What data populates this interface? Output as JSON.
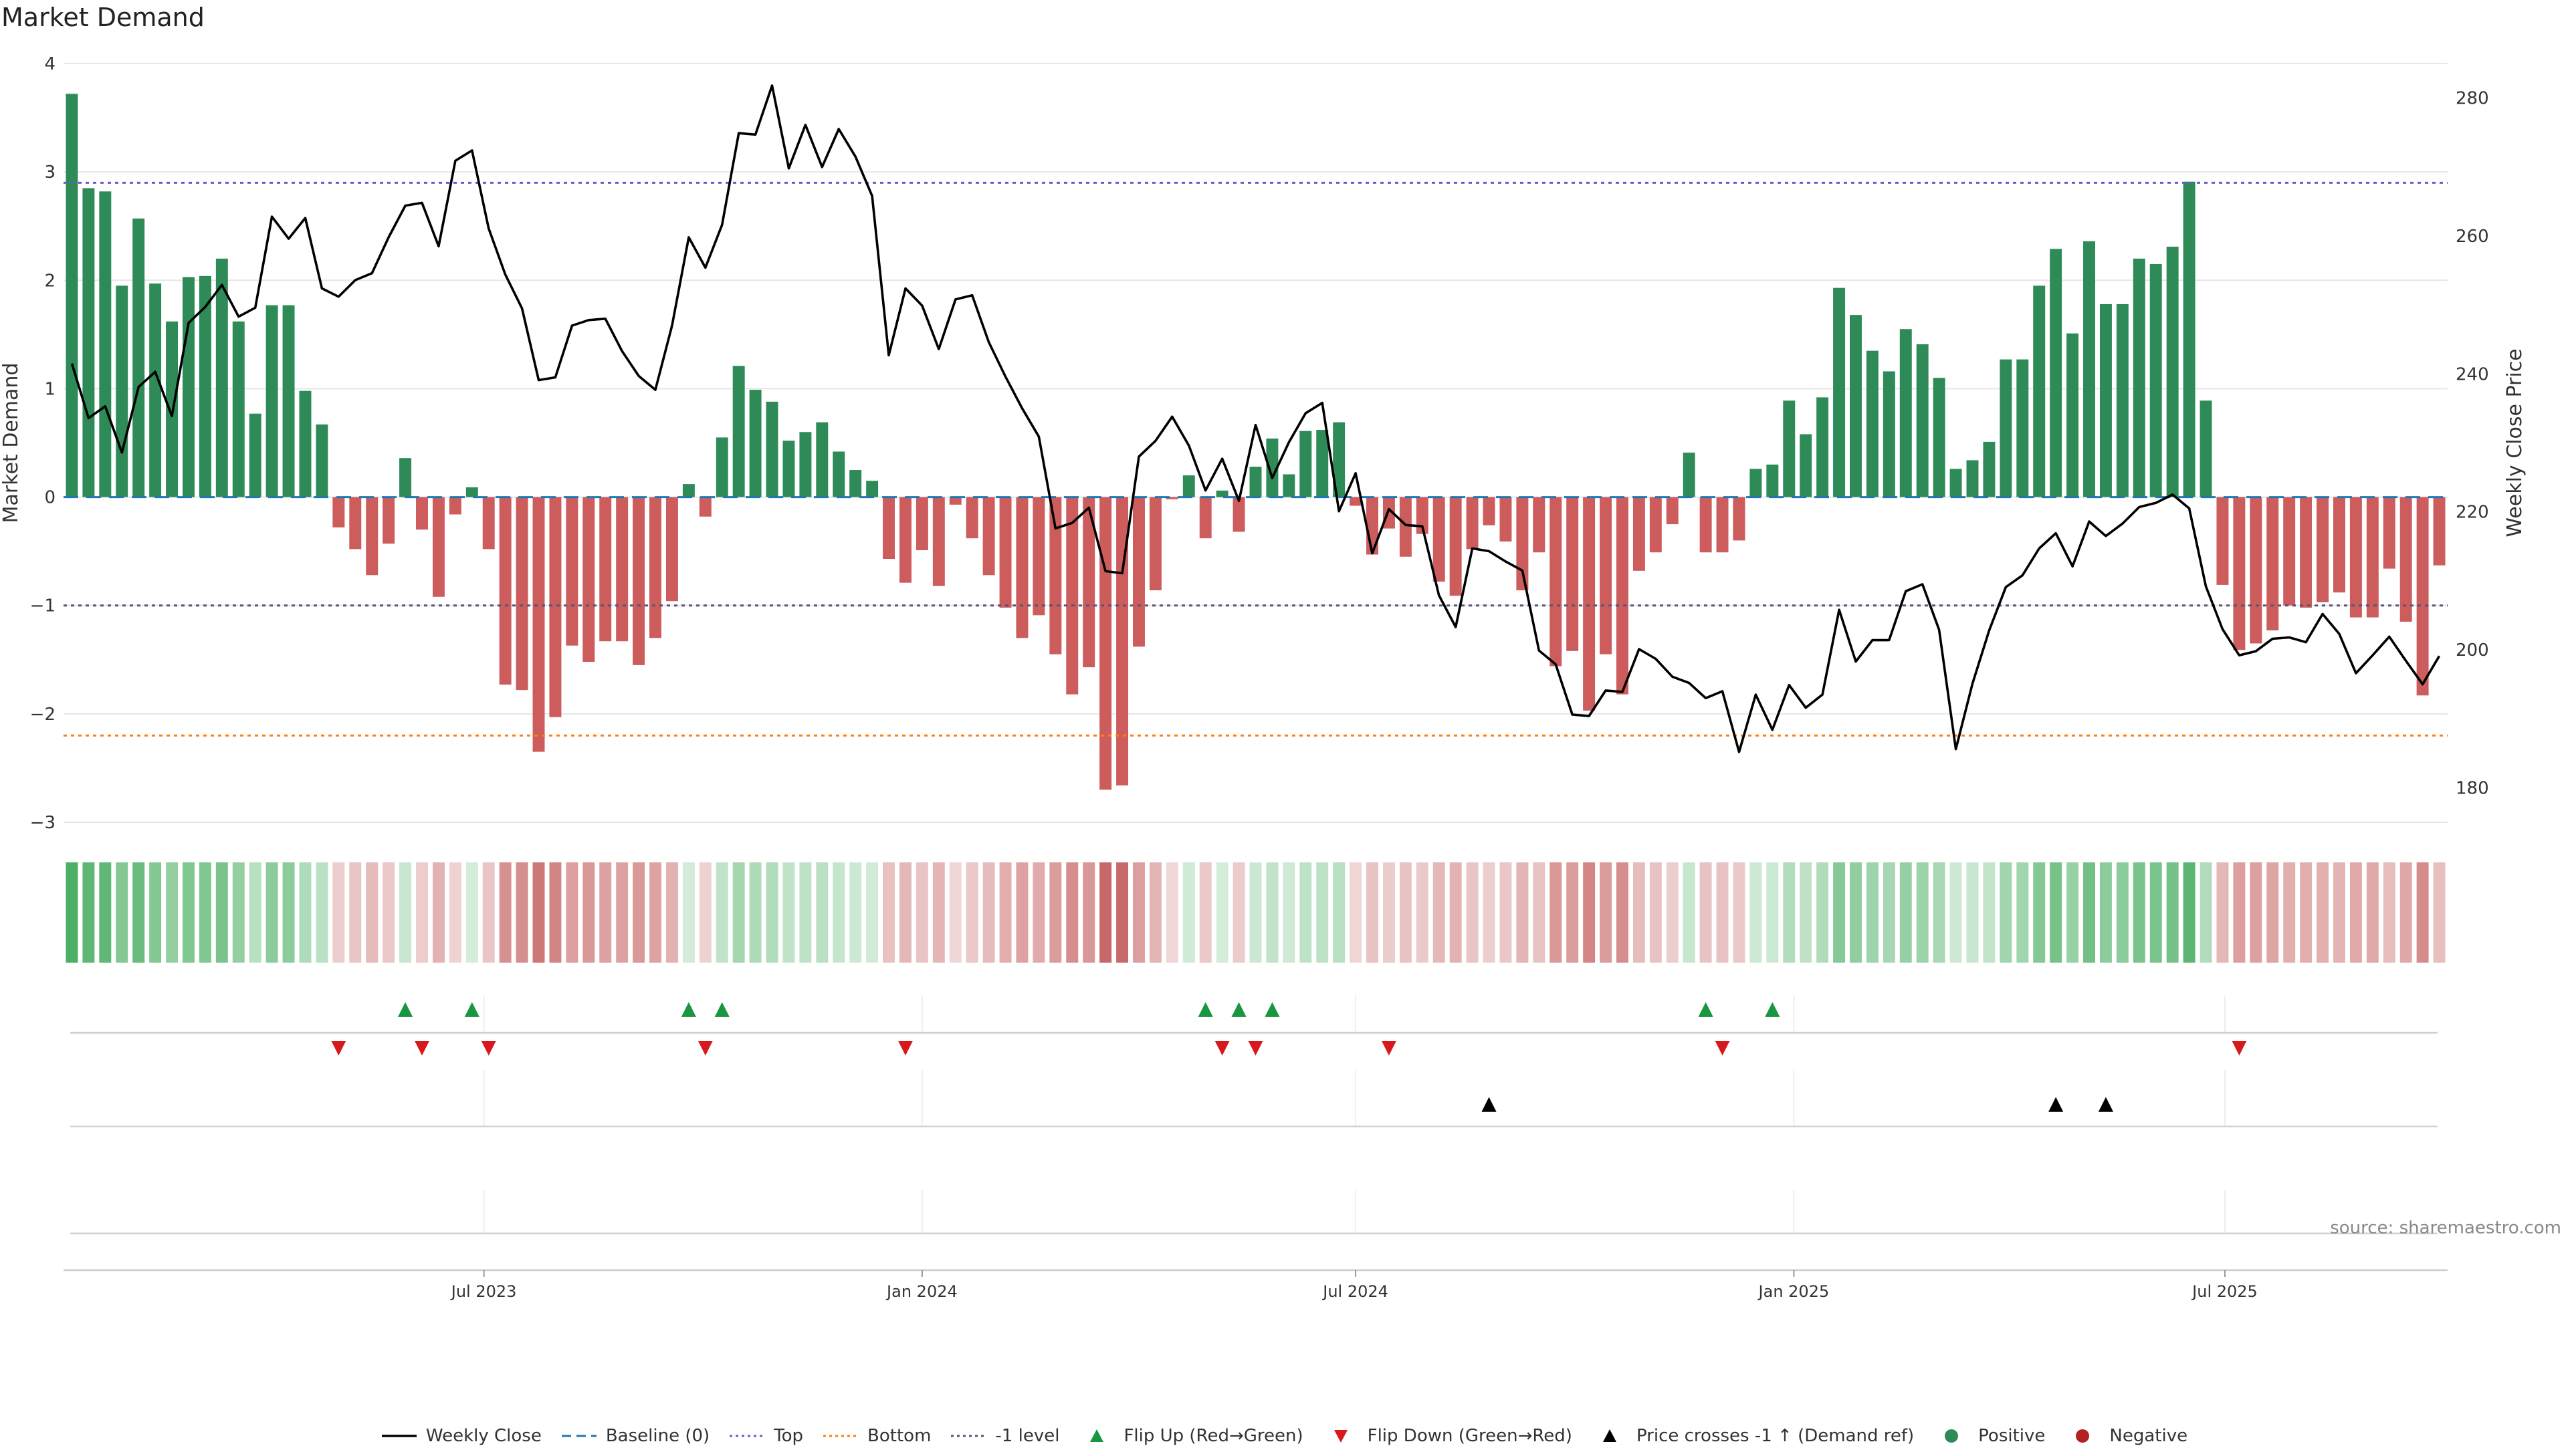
{
  "chart_data": {
    "type": "bar",
    "title": "Market Demand",
    "source": "source: sharemaestro.com",
    "ylabel_left": "Market Demand",
    "ylabel_right": "Weekly Close Price",
    "ylim_left": [
      -3,
      4
    ],
    "ylim_right": [
      175,
      285
    ],
    "left_ticks": [
      "−3",
      "−2",
      "−1",
      "0",
      "1",
      "2",
      "3",
      "4"
    ],
    "left_tick_values": [
      -3,
      -2,
      -1,
      0,
      1,
      2,
      3,
      4
    ],
    "right_ticks": [
      "180",
      "200",
      "220",
      "240",
      "260",
      "280"
    ],
    "right_tick_values": [
      180,
      200,
      220,
      240,
      260,
      280
    ],
    "x_start": "2023-01-09",
    "x_ticks": [
      {
        "label": "Jul 2023",
        "date": "2023-07-01"
      },
      {
        "label": "Jan 2024",
        "date": "2024-01-01"
      },
      {
        "label": "Jul 2024",
        "date": "2024-07-01"
      },
      {
        "label": "Jan 2025",
        "date": "2025-01-01"
      },
      {
        "label": "Jul 2025",
        "date": "2025-07-01"
      }
    ],
    "reference_lines": [
      {
        "name": "Baseline (0)",
        "value": 0,
        "color": "#1f77b4",
        "dash": "long"
      },
      {
        "name": "Top",
        "value": 2.9,
        "color": "#6a5acd",
        "dash": "dot"
      },
      {
        "name": "Bottom",
        "value": -2.2,
        "color": "#ff7f0e",
        "dash": "dot"
      },
      {
        "name": "-1 level",
        "value": -1,
        "color": "#555577",
        "dash": "dot"
      }
    ],
    "series": [
      {
        "name": "Market Demand",
        "values": [
          3.72,
          2.85,
          2.82,
          1.95,
          2.57,
          1.97,
          1.62,
          2.03,
          2.04,
          2.2,
          1.62,
          0.77,
          1.77,
          1.77,
          0.98,
          0.67,
          -0.28,
          -0.48,
          -0.72,
          -0.43,
          0.36,
          -0.3,
          -0.92,
          -0.16,
          0.09,
          -0.48,
          -1.73,
          -1.78,
          -2.35,
          -2.03,
          -1.37,
          -1.52,
          -1.33,
          -1.33,
          -1.55,
          -1.3,
          -0.96,
          0.12,
          -0.18,
          0.55,
          1.21,
          0.99,
          0.88,
          0.52,
          0.6,
          0.69,
          0.42,
          0.25,
          0.15,
          -0.57,
          -0.79,
          -0.49,
          -0.82,
          -0.07,
          -0.38,
          -0.72,
          -1.02,
          -1.3,
          -1.09,
          -1.45,
          -1.82,
          -1.57,
          -2.7,
          -2.66,
          -1.38,
          -0.86,
          -0.02,
          0.2,
          -0.38,
          0.06,
          -0.32,
          0.28,
          0.54,
          0.21,
          0.61,
          0.62,
          0.69,
          -0.08,
          -0.53,
          -0.29,
          -0.55,
          -0.34,
          -0.78,
          -0.91,
          -0.48,
          -0.26,
          -0.41,
          -0.86,
          -0.51,
          -1.56,
          -1.42,
          -1.97,
          -1.45,
          -1.82,
          -0.68,
          -0.51,
          -0.25,
          0.41,
          -0.51,
          -0.51,
          -0.4,
          0.26,
          0.3,
          0.89,
          0.58,
          0.92,
          1.93,
          1.68,
          1.35,
          1.16,
          1.55,
          1.41,
          1.1,
          0.26,
          0.34,
          0.51,
          1.27,
          1.27,
          1.95,
          2.29,
          1.51,
          2.36,
          1.78,
          1.78,
          2.2,
          2.15,
          2.31,
          2.91,
          0.89,
          -0.81,
          -1.41,
          -1.35,
          -1.23,
          -1.0,
          -1.02,
          -0.97,
          -0.88,
          -1.11,
          -1.11,
          -0.66,
          -1.15,
          -1.83,
          -0.63
        ]
      },
      {
        "name": "Weekly Close",
        "values": [
          241.5,
          233.6,
          235.3,
          228.6,
          238.1,
          240.3,
          233.9,
          247.4,
          249.7,
          252.9,
          248.3,
          249.6,
          262.8,
          259.6,
          262.6,
          252.4,
          251.2,
          253.6,
          254.6,
          259.8,
          264.4,
          264.8,
          258.5,
          270.9,
          272.4,
          261.1,
          254.4,
          249.5,
          239.1,
          239.5,
          247.0,
          247.8,
          248.0,
          243.3,
          239.7,
          237.7,
          247.0,
          259.8,
          255.4,
          261.6,
          274.9,
          274.7,
          281.8,
          269.8,
          276.1,
          270.0,
          275.5,
          271.5,
          265.8,
          242.7,
          252.4,
          249.9,
          243.6,
          250.8,
          251.4,
          244.6,
          239.6,
          235.0,
          230.9,
          217.6,
          218.4,
          220.6,
          211.4,
          211.1,
          228.0,
          230.3,
          233.8,
          229.6,
          223.1,
          227.7,
          221.6,
          232.6,
          224.9,
          230.1,
          234.3,
          235.8,
          220.1,
          225.6,
          214.0,
          220.4,
          218.1,
          217.9,
          207.9,
          203.3,
          214.7,
          214.3,
          212.8,
          211.5,
          199.9,
          197.9,
          190.6,
          190.4,
          194.1,
          193.9,
          200.1,
          198.7,
          196.1,
          195.2,
          193.0,
          194.0,
          185.2,
          193.5,
          188.4,
          194.9,
          191.6,
          193.5,
          205.8,
          198.3,
          201.4,
          201.4,
          208.5,
          209.5,
          202.9,
          185.6,
          195.1,
          202.8,
          209.1,
          210.8,
          214.7,
          216.9,
          212.1,
          218.6,
          216.5,
          218.3,
          220.7,
          221.3,
          222.5,
          220.5,
          209.2,
          203.0,
          199.2,
          199.8,
          201.6,
          201.8,
          201.1,
          205.2,
          202.3,
          196.6,
          199.2,
          201.9,
          198.4,
          195.0,
          199.1
        ]
      }
    ],
    "flip_up_weeks": [
      20,
      24,
      37,
      39,
      68,
      70,
      72,
      98,
      102
    ],
    "flip_down_weeks": [
      16,
      21,
      25,
      38,
      50,
      69,
      71,
      79,
      99,
      130
    ],
    "price_cross_weeks": [
      85,
      119,
      122
    ],
    "colors": {
      "positive": "#2e8b57",
      "negative": "#cd5c5c",
      "price_line": "#000000",
      "flip_up": "#1a9641",
      "flip_down": "#d7191c",
      "grid": "#e6e6e6"
    },
    "legend": [
      {
        "label": "Weekly Close",
        "key": "line",
        "color": "#000000"
      },
      {
        "label": "Baseline (0)",
        "key": "dash",
        "color": "#1f77b4"
      },
      {
        "label": "Top",
        "key": "dot",
        "color": "#6a5acd"
      },
      {
        "label": "Bottom",
        "key": "dot",
        "color": "#ff7f0e"
      },
      {
        "label": "-1 level",
        "key": "dot",
        "color": "#555577"
      },
      {
        "label": "Flip Up (Red→Green)",
        "key": "tri-up",
        "color": "#1a9641"
      },
      {
        "label": "Flip Down (Green→Red)",
        "key": "tri-down",
        "color": "#d7191c"
      },
      {
        "label": "Price crosses -1 ↑ (Demand ref)",
        "key": "tri-up",
        "color": "#000000"
      },
      {
        "label": "Positive",
        "key": "dot-circle",
        "color": "#2e8b57"
      },
      {
        "label": "Negative",
        "key": "dot-circle",
        "color": "#b22222"
      }
    ]
  }
}
